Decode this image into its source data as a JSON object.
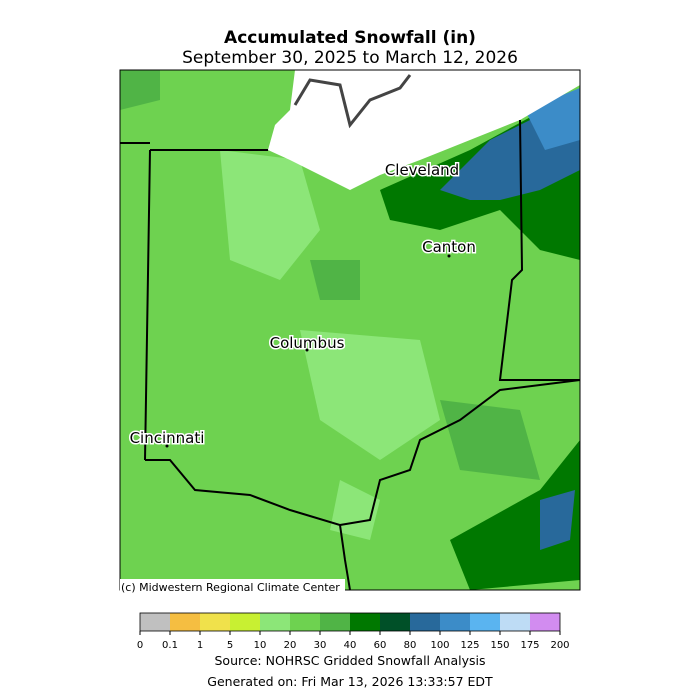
{
  "header": {
    "title": "Accumulated Snowfall (in)",
    "subtitle": "September 30, 2025 to March 12, 2026"
  },
  "map": {
    "cities": [
      "Cleveland",
      "Canton",
      "Columbus",
      "Cincinnati"
    ],
    "credit": "(c) Midwestern Regional Climate Center"
  },
  "colorbar": {
    "ticks": [
      0,
      0.1,
      1,
      5,
      10,
      20,
      30,
      40,
      60,
      80,
      100,
      125,
      150,
      175,
      200
    ],
    "colors": [
      "#c0c0c0",
      "#f5be41",
      "#f0e14b",
      "#c8f032",
      "#8ce678",
      "#6ed250",
      "#50b446",
      "#007800",
      "#005028",
      "#28699b",
      "#3c8cc8",
      "#5ab4f0",
      "#bedcf5",
      "#d28cf0"
    ]
  },
  "footer": {
    "source": "Source: NOHRSC Gridded Snowfall Analysis",
    "generated": "Generated on: Fri Mar 13, 2026 13:33:57 EDT"
  }
}
